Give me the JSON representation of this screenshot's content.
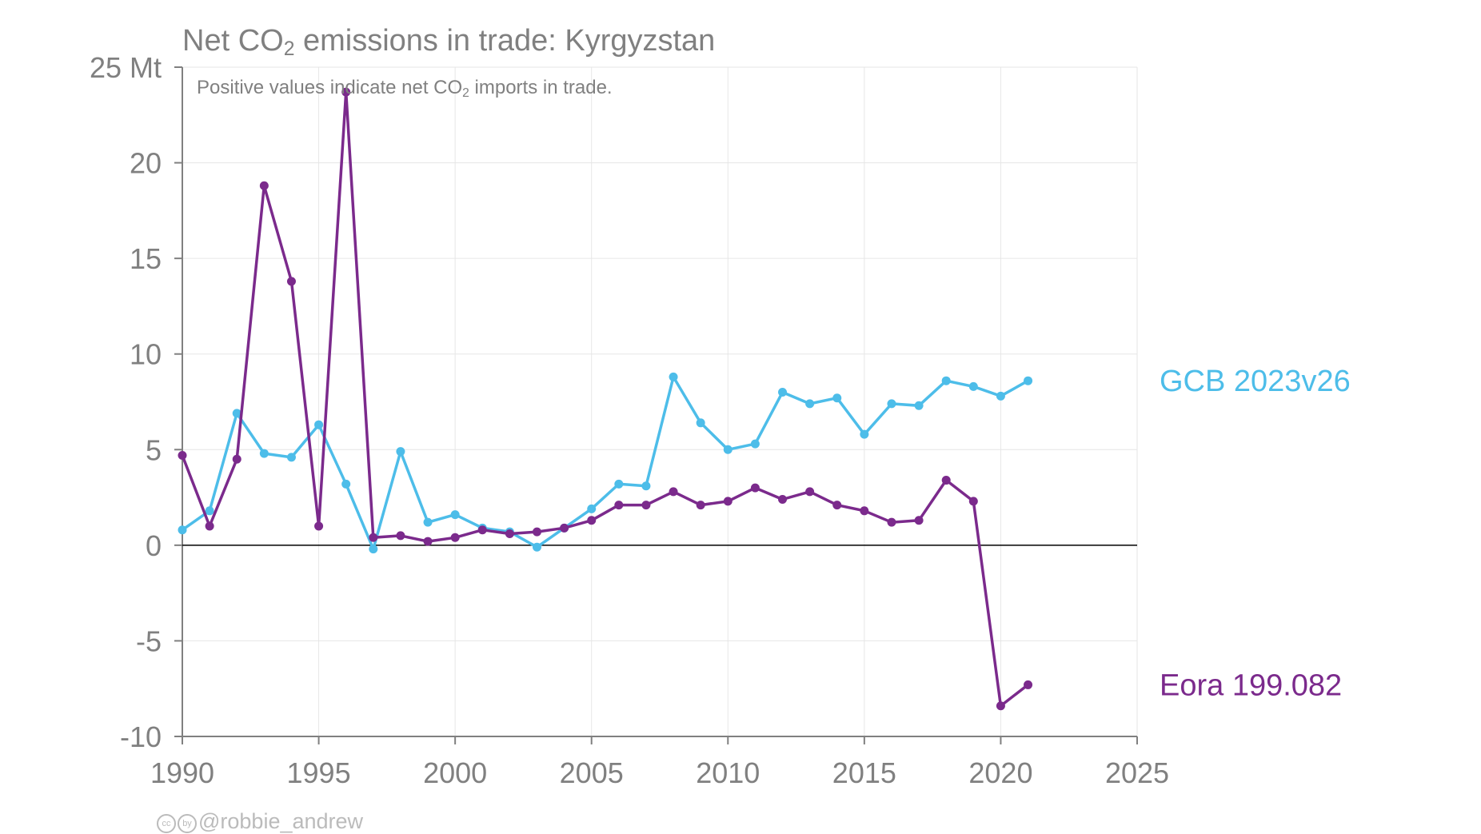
{
  "title": {
    "prefix": "Net CO",
    "sub": "2",
    "suffix": " emissions in trade: Kyrgyzstan"
  },
  "subtitle": {
    "prefix": "Positive values indicate net CO",
    "sub": "2",
    "suffix": " imports in trade."
  },
  "credit": {
    "icon1": "cc",
    "icon2": "by",
    "text": "@robbie_andrew"
  },
  "colors": {
    "gcb": "#4dbde9",
    "eora": "#7b2a8c",
    "axis": "#808080",
    "grid": "#e6e6e6",
    "zero": "#000000"
  },
  "chart_data": {
    "type": "line",
    "title": "Net CO2 emissions in trade: Kyrgyzstan",
    "subtitle": "Positive values indicate net CO2 imports in trade.",
    "xlim": [
      1990,
      2025
    ],
    "ylim": [
      -10,
      25
    ],
    "x_ticks": [
      1990,
      1995,
      2000,
      2005,
      2010,
      2015,
      2020,
      2025
    ],
    "y_ticks": [
      -10,
      -5,
      0,
      5,
      10,
      15,
      20,
      25
    ],
    "y_tick_labels": [
      "-10",
      "-5",
      "0",
      "5",
      "10",
      "15",
      "20",
      "25 Mt"
    ],
    "grid": true,
    "legend": "direct labels at right end of each series",
    "series": [
      {
        "name": "GCB 2023v26",
        "color": "#4dbde9",
        "x": [
          1990,
          1991,
          1992,
          1993,
          1994,
          1995,
          1996,
          1997,
          1998,
          1999,
          2000,
          2001,
          2002,
          2003,
          2004,
          2005,
          2006,
          2007,
          2008,
          2009,
          2010,
          2011,
          2012,
          2013,
          2014,
          2015,
          2016,
          2017,
          2018,
          2019,
          2020,
          2021
        ],
        "values": [
          0.8,
          1.8,
          6.9,
          4.8,
          4.6,
          6.3,
          3.2,
          -0.2,
          4.9,
          1.2,
          1.6,
          0.9,
          0.7,
          -0.1,
          0.9,
          1.9,
          3.2,
          3.1,
          8.8,
          6.4,
          5.0,
          5.3,
          8.0,
          7.4,
          7.7,
          5.8,
          7.4,
          7.3,
          8.6,
          8.3,
          7.8,
          8.6
        ]
      },
      {
        "name": "Eora 199.082",
        "color": "#7b2a8c",
        "x": [
          1990,
          1991,
          1992,
          1993,
          1994,
          1995,
          1996,
          1997,
          1998,
          1999,
          2000,
          2001,
          2002,
          2003,
          2004,
          2005,
          2006,
          2007,
          2008,
          2009,
          2010,
          2011,
          2012,
          2013,
          2014,
          2015,
          2016,
          2017,
          2018,
          2019,
          2020,
          2021
        ],
        "values": [
          4.7,
          1.0,
          4.5,
          18.8,
          13.8,
          1.0,
          23.7,
          0.4,
          0.5,
          0.2,
          0.4,
          0.8,
          0.6,
          0.7,
          0.9,
          1.3,
          2.1,
          2.1,
          2.8,
          2.1,
          2.3,
          3.0,
          2.4,
          2.8,
          2.1,
          1.8,
          1.2,
          1.3,
          3.4,
          2.3,
          -8.4,
          -7.3
        ]
      }
    ]
  }
}
